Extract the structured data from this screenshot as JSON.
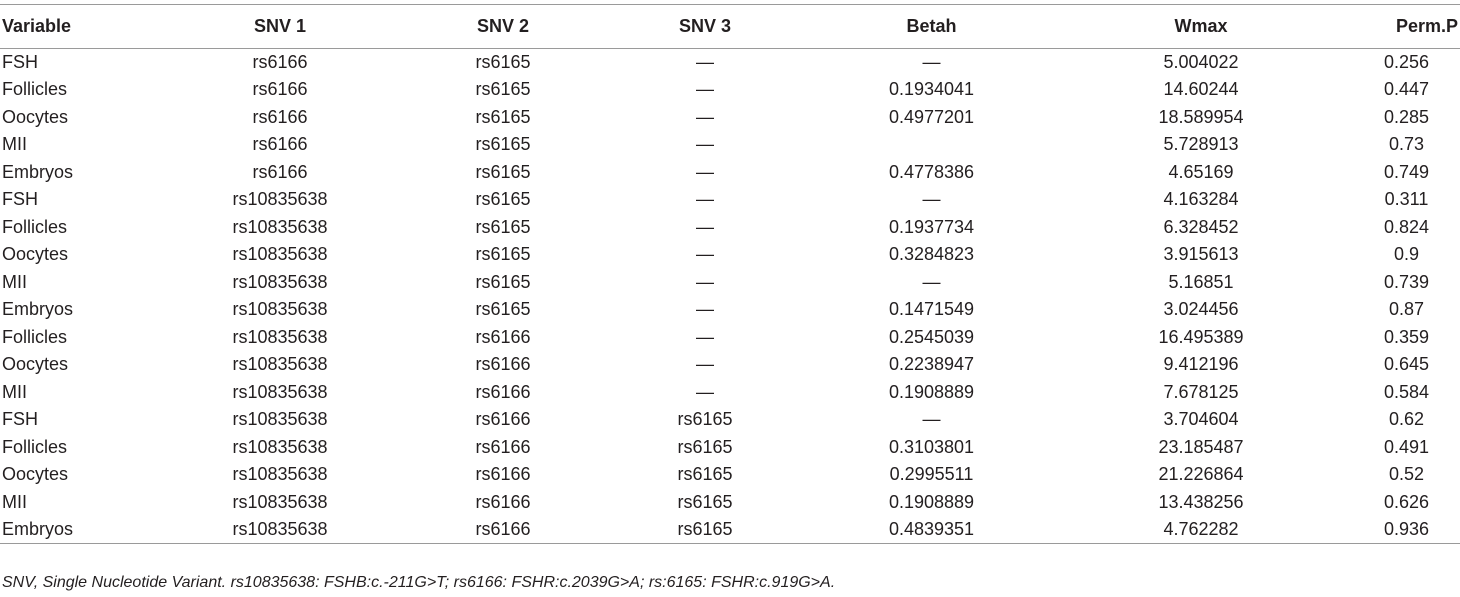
{
  "table": {
    "headers": [
      "Variable",
      "SNV 1",
      "SNV 2",
      "SNV 3",
      "Betah",
      "Wmax",
      "Perm.P"
    ],
    "rows": [
      [
        "FSH",
        "rs6166",
        "rs6165",
        "—",
        "—",
        "5.004022",
        "0.256"
      ],
      [
        "Follicles",
        "rs6166",
        "rs6165",
        "—",
        "0.1934041",
        "14.60244",
        "0.447"
      ],
      [
        "Oocytes",
        "rs6166",
        "rs6165",
        "—",
        "0.4977201",
        "18.589954",
        "0.285"
      ],
      [
        "MII",
        "rs6166",
        "rs6165",
        "—",
        "",
        "5.728913",
        "0.73"
      ],
      [
        "Embryos",
        "rs6166",
        "rs6165",
        "—",
        "0.4778386",
        "4.65169",
        "0.749"
      ],
      [
        "FSH",
        "rs10835638",
        "rs6165",
        "—",
        "—",
        "4.163284",
        "0.311"
      ],
      [
        "Follicles",
        "rs10835638",
        "rs6165",
        "—",
        "0.1937734",
        "6.328452",
        "0.824"
      ],
      [
        "Oocytes",
        "rs10835638",
        "rs6165",
        "—",
        "0.3284823",
        "3.915613",
        "0.9"
      ],
      [
        "MII",
        "rs10835638",
        "rs6165",
        "—",
        "—",
        "5.16851",
        "0.739"
      ],
      [
        "Embryos",
        "rs10835638",
        "rs6165",
        "—",
        "0.1471549",
        "3.024456",
        "0.87"
      ],
      [
        "Follicles",
        "rs10835638",
        "rs6166",
        "—",
        "0.2545039",
        "16.495389",
        "0.359"
      ],
      [
        "Oocytes",
        "rs10835638",
        "rs6166",
        "—",
        "0.2238947",
        "9.412196",
        "0.645"
      ],
      [
        "MII",
        "rs10835638",
        "rs6166",
        "—",
        "0.1908889",
        "7.678125",
        "0.584"
      ],
      [
        "FSH",
        "rs10835638",
        "rs6166",
        "rs6165",
        "—",
        "3.704604",
        "0.62"
      ],
      [
        "Follicles",
        "rs10835638",
        "rs6166",
        "rs6165",
        "0.3103801",
        "23.185487",
        "0.491"
      ],
      [
        "Oocytes",
        "rs10835638",
        "rs6166",
        "rs6165",
        "0.2995511",
        "21.226864",
        "0.52"
      ],
      [
        "MII",
        "rs10835638",
        "rs6166",
        "rs6165",
        "0.1908889",
        "13.438256",
        "0.626"
      ],
      [
        "Embryos",
        "rs10835638",
        "rs6166",
        "rs6165",
        "0.4839351",
        "4.762282",
        "0.936"
      ]
    ]
  },
  "footnote": "SNV, Single Nucleotide Variant. rs10835638: FSHB:c.-211G>T; rs6166: FSHR:c.2039G>A; rs:6165: FSHR:c.919G>A."
}
